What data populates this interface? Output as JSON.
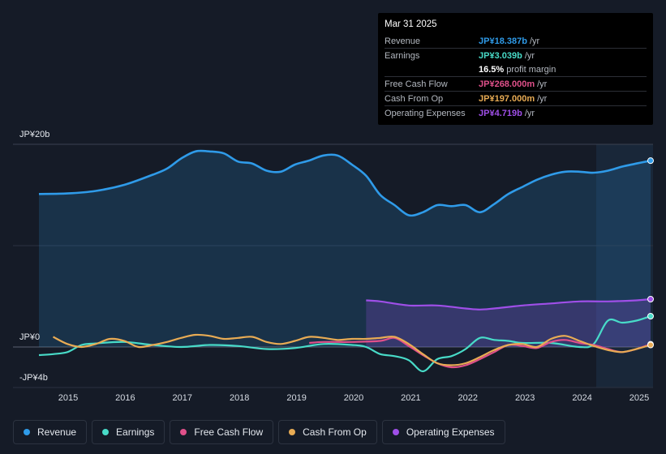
{
  "chart_data": {
    "type": "line",
    "title": "",
    "y_axis": {
      "ticks": [
        "JP¥20b",
        "JP¥0",
        "-JP¥4b"
      ],
      "ylim": [
        -4,
        20
      ],
      "unit": "JP¥ b"
    },
    "x_axis": {
      "ticks": [
        "2015",
        "2016",
        "2017",
        "2018",
        "2019",
        "2020",
        "2021",
        "2022",
        "2023",
        "2024",
        "2025"
      ],
      "xlim": [
        2014.45,
        2025.25
      ]
    },
    "series": [
      {
        "name": "Revenue",
        "color": "#2f9be9",
        "fill": true,
        "points": [
          [
            2014.5,
            15.1
          ],
          [
            2015.0,
            15.15
          ],
          [
            2015.5,
            15.4
          ],
          [
            2016.0,
            16.0
          ],
          [
            2016.5,
            17.0
          ],
          [
            2016.75,
            17.6
          ],
          [
            2017.0,
            18.6
          ],
          [
            2017.25,
            19.3
          ],
          [
            2017.5,
            19.3
          ],
          [
            2017.75,
            19.1
          ],
          [
            2018.0,
            18.3
          ],
          [
            2018.25,
            18.1
          ],
          [
            2018.5,
            17.4
          ],
          [
            2018.75,
            17.3
          ],
          [
            2019.0,
            18.0
          ],
          [
            2019.25,
            18.4
          ],
          [
            2019.5,
            18.9
          ],
          [
            2019.75,
            18.9
          ],
          [
            2020.0,
            18.0
          ],
          [
            2020.25,
            16.9
          ],
          [
            2020.5,
            15.0
          ],
          [
            2020.75,
            14.0
          ],
          [
            2021.0,
            13.0
          ],
          [
            2021.25,
            13.3
          ],
          [
            2021.5,
            14.0
          ],
          [
            2021.75,
            13.9
          ],
          [
            2022.0,
            14.0
          ],
          [
            2022.25,
            13.3
          ],
          [
            2022.5,
            14.1
          ],
          [
            2022.75,
            15.1
          ],
          [
            2023.0,
            15.8
          ],
          [
            2023.25,
            16.5
          ],
          [
            2023.5,
            17.0
          ],
          [
            2023.75,
            17.3
          ],
          [
            2024.0,
            17.3
          ],
          [
            2024.25,
            17.2
          ],
          [
            2024.5,
            17.4
          ],
          [
            2024.75,
            17.8
          ],
          [
            2025.0,
            18.1
          ],
          [
            2025.25,
            18.387
          ]
        ]
      },
      {
        "name": "Earnings",
        "color": "#48dbc8",
        "fill": false,
        "points": [
          [
            2014.5,
            -0.8
          ],
          [
            2014.75,
            -0.7
          ],
          [
            2015.0,
            -0.5
          ],
          [
            2015.25,
            0.2
          ],
          [
            2015.5,
            0.35
          ],
          [
            2016.0,
            0.5
          ],
          [
            2016.5,
            0.2
          ],
          [
            2017.0,
            0.0
          ],
          [
            2017.5,
            0.2
          ],
          [
            2018.0,
            0.1
          ],
          [
            2018.5,
            -0.2
          ],
          [
            2019.0,
            -0.1
          ],
          [
            2019.5,
            0.3
          ],
          [
            2020.0,
            0.2
          ],
          [
            2020.25,
            0.0
          ],
          [
            2020.5,
            -0.7
          ],
          [
            2020.75,
            -0.9
          ],
          [
            2021.0,
            -1.3
          ],
          [
            2021.25,
            -2.4
          ],
          [
            2021.5,
            -1.2
          ],
          [
            2021.75,
            -0.9
          ],
          [
            2022.0,
            -0.2
          ],
          [
            2022.25,
            0.9
          ],
          [
            2022.5,
            0.7
          ],
          [
            2022.75,
            0.6
          ],
          [
            2023.0,
            0.4
          ],
          [
            2023.5,
            0.4
          ],
          [
            2024.0,
            0.0
          ],
          [
            2024.25,
            0.3
          ],
          [
            2024.5,
            2.6
          ],
          [
            2024.75,
            2.4
          ],
          [
            2025.0,
            2.6
          ],
          [
            2025.25,
            3.039
          ]
        ]
      },
      {
        "name": "Free Cash Flow",
        "color": "#e0508a",
        "fill": false,
        "points": [
          [
            2019.25,
            0.4
          ],
          [
            2019.5,
            0.5
          ],
          [
            2020.0,
            0.5
          ],
          [
            2020.5,
            0.6
          ],
          [
            2020.75,
            0.9
          ],
          [
            2021.0,
            0.1
          ],
          [
            2021.25,
            -0.8
          ],
          [
            2021.5,
            -1.6
          ],
          [
            2021.75,
            -2.0
          ],
          [
            2022.0,
            -1.8
          ],
          [
            2022.25,
            -1.2
          ],
          [
            2022.5,
            -0.5
          ],
          [
            2022.75,
            0.2
          ],
          [
            2023.0,
            0.1
          ],
          [
            2023.25,
            -0.1
          ],
          [
            2023.5,
            0.5
          ],
          [
            2023.75,
            0.7
          ],
          [
            2024.0,
            0.4
          ],
          [
            2024.25,
            0.2
          ],
          [
            2024.5,
            -0.2
          ],
          [
            2024.75,
            -0.5
          ],
          [
            2025.0,
            -0.2
          ],
          [
            2025.25,
            0.268
          ]
        ]
      },
      {
        "name": "Cash From Op",
        "color": "#e8ab54",
        "fill": false,
        "points": [
          [
            2014.75,
            1.0
          ],
          [
            2015.0,
            0.3
          ],
          [
            2015.25,
            0.0
          ],
          [
            2015.5,
            0.3
          ],
          [
            2015.75,
            0.8
          ],
          [
            2016.0,
            0.6
          ],
          [
            2016.25,
            0.0
          ],
          [
            2016.5,
            0.2
          ],
          [
            2016.75,
            0.5
          ],
          [
            2017.0,
            0.9
          ],
          [
            2017.25,
            1.2
          ],
          [
            2017.5,
            1.1
          ],
          [
            2017.75,
            0.8
          ],
          [
            2018.0,
            0.9
          ],
          [
            2018.25,
            1.0
          ],
          [
            2018.5,
            0.5
          ],
          [
            2018.75,
            0.3
          ],
          [
            2019.0,
            0.6
          ],
          [
            2019.25,
            1.0
          ],
          [
            2019.5,
            0.9
          ],
          [
            2019.75,
            0.7
          ],
          [
            2020.0,
            0.8
          ],
          [
            2020.25,
            0.8
          ],
          [
            2020.5,
            0.9
          ],
          [
            2020.75,
            1.0
          ],
          [
            2021.0,
            0.3
          ],
          [
            2021.25,
            -0.7
          ],
          [
            2021.5,
            -1.6
          ],
          [
            2021.75,
            -1.8
          ],
          [
            2022.0,
            -1.6
          ],
          [
            2022.25,
            -1.0
          ],
          [
            2022.5,
            -0.3
          ],
          [
            2022.75,
            0.2
          ],
          [
            2023.0,
            0.3
          ],
          [
            2023.25,
            0.0
          ],
          [
            2023.5,
            0.8
          ],
          [
            2023.75,
            1.1
          ],
          [
            2024.0,
            0.6
          ],
          [
            2024.25,
            0.1
          ],
          [
            2024.5,
            -0.3
          ],
          [
            2024.75,
            -0.5
          ],
          [
            2025.0,
            -0.2
          ],
          [
            2025.25,
            0.197
          ]
        ]
      },
      {
        "name": "Operating Expenses",
        "color": "#9f4fe8",
        "fill": true,
        "points": [
          [
            2020.25,
            4.6
          ],
          [
            2020.5,
            4.5
          ],
          [
            2021.0,
            4.1
          ],
          [
            2021.5,
            4.1
          ],
          [
            2022.0,
            3.8
          ],
          [
            2022.25,
            3.7
          ],
          [
            2022.5,
            3.8
          ],
          [
            2023.0,
            4.1
          ],
          [
            2023.5,
            4.3
          ],
          [
            2024.0,
            4.5
          ],
          [
            2024.5,
            4.5
          ],
          [
            2025.0,
            4.6
          ],
          [
            2025.25,
            4.719
          ]
        ]
      }
    ]
  },
  "tooltip": {
    "date": "Mar 31 2025",
    "rows": [
      {
        "label": "Revenue",
        "value": "JP¥18.387b",
        "unit": "/yr",
        "color": "#2f9be9"
      },
      {
        "label": "Earnings",
        "value": "JP¥3.039b",
        "unit": "/yr",
        "color": "#48dbc8"
      },
      {
        "label": "",
        "value": "16.5%",
        "unit": "profit margin",
        "color": "#ffffff"
      },
      {
        "label": "Free Cash Flow",
        "value": "JP¥268.000m",
        "unit": "/yr",
        "color": "#e0508a"
      },
      {
        "label": "Cash From Op",
        "value": "JP¥197.000m",
        "unit": "/yr",
        "color": "#e8ab54"
      },
      {
        "label": "Operating Expenses",
        "value": "JP¥4.719b",
        "unit": "/yr",
        "color": "#9f4fe8"
      }
    ]
  },
  "legend": [
    {
      "label": "Revenue",
      "color": "#2f9be9"
    },
    {
      "label": "Earnings",
      "color": "#48dbc8"
    },
    {
      "label": "Free Cash Flow",
      "color": "#e0508a"
    },
    {
      "label": "Cash From Op",
      "color": "#e8ab54"
    },
    {
      "label": "Operating Expenses",
      "color": "#9f4fe8"
    }
  ]
}
